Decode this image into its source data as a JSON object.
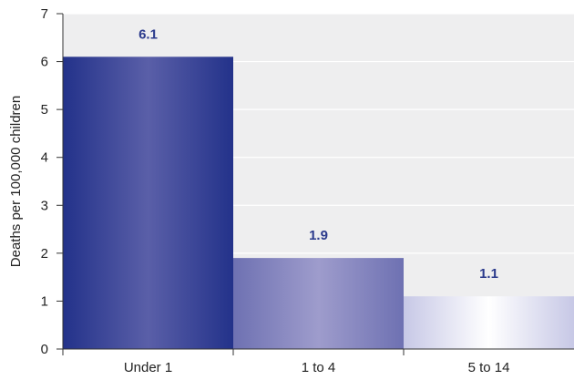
{
  "chart_data": {
    "type": "bar",
    "title": "",
    "xlabel": "",
    "ylabel": "Deaths per 100,000 children",
    "categories": [
      "Under 1",
      "1 to 4",
      "5 to 14"
    ],
    "values": [
      6.1,
      1.9,
      1.1
    ],
    "data_labels": [
      "6.1",
      "1.9",
      "1.1"
    ],
    "ylim": [
      0,
      7
    ],
    "yticks": [
      0,
      1,
      2,
      3,
      4,
      5,
      6,
      7
    ],
    "ytick_labels": [
      "0",
      "1",
      "2",
      "3",
      "4",
      "5",
      "6",
      "7"
    ],
    "grid": true,
    "legend": "none",
    "colors": {
      "plot_background": "#eeeeef",
      "gridline": "#ffffff",
      "data_label": "#2b3a8c",
      "bar_gradients": [
        [
          "#23328a",
          "#5a5fa8",
          "#23328a"
        ],
        [
          "#6e71b2",
          "#9e9ccc",
          "#6e71b2"
        ],
        [
          "#c7c8e6",
          "#ffffff",
          "#c7c8e6"
        ]
      ]
    }
  }
}
